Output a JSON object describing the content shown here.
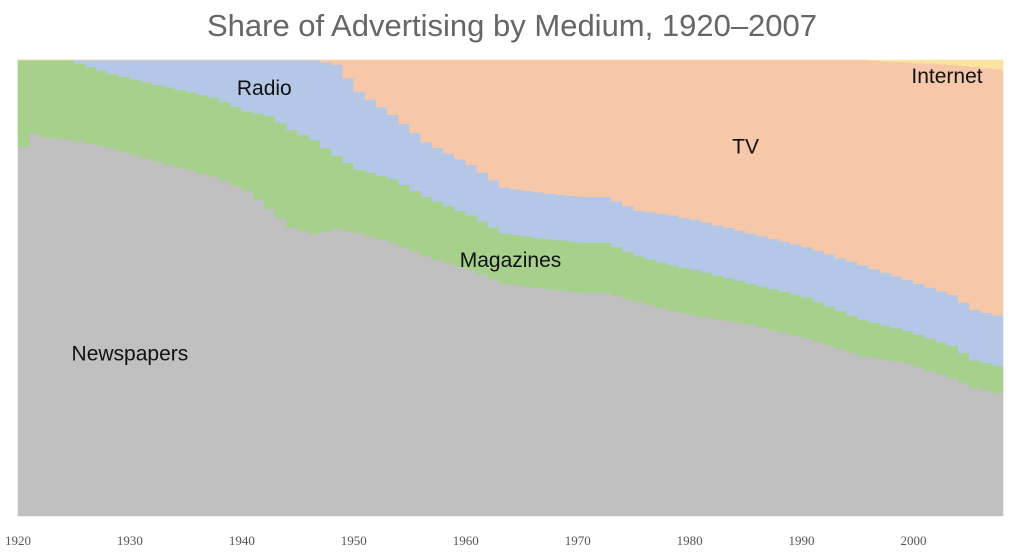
{
  "chart_data": {
    "type": "area",
    "title": "Share of Advertising by Medium, 1920–2007",
    "xlabel": "",
    "ylabel": "",
    "stacking": "percent",
    "xlim": [
      1920,
      2008
    ],
    "ylim": [
      0,
      100
    ],
    "x_ticks": [
      1920,
      1930,
      1940,
      1950,
      1960,
      1970,
      1980,
      1990,
      2000
    ],
    "grid": false,
    "legend": "none",
    "stack_order_bottom_to_top": [
      "Newspapers",
      "Magazines",
      "Radio",
      "TV",
      "Internet"
    ],
    "series": [
      {
        "name": "Newspapers",
        "color": "#c0c0c0",
        "points": [
          [
            1920,
            81
          ],
          [
            1921,
            84
          ],
          [
            1922,
            83
          ],
          [
            1924,
            81
          ],
          [
            1928,
            79
          ],
          [
            1933,
            77
          ],
          [
            1935,
            75
          ],
          [
            1937,
            73
          ],
          [
            1940,
            70
          ],
          [
            1942,
            66
          ],
          [
            1944,
            62
          ],
          [
            1946,
            60
          ],
          [
            1948,
            63
          ],
          [
            1950,
            62
          ],
          [
            1953,
            60
          ],
          [
            1956,
            57
          ],
          [
            1960,
            54
          ],
          [
            1963,
            51
          ],
          [
            1966,
            50
          ],
          [
            1970,
            49
          ],
          [
            1972,
            49
          ],
          [
            1975,
            47
          ],
          [
            1978,
            45
          ],
          [
            1980,
            44
          ],
          [
            1985,
            42
          ],
          [
            1990,
            39
          ],
          [
            1995,
            35
          ],
          [
            1999,
            33
          ],
          [
            2003,
            30
          ],
          [
            2005,
            28
          ],
          [
            2007,
            27
          ]
        ]
      },
      {
        "name": "Magazines",
        "color": "#a6d08c",
        "points": [
          [
            1920,
            19
          ],
          [
            1921,
            16
          ],
          [
            1922,
            17
          ],
          [
            1924,
            17
          ],
          [
            1928,
            16
          ],
          [
            1933,
            17
          ],
          [
            1935,
            17
          ],
          [
            1937,
            17
          ],
          [
            1940,
            17
          ],
          [
            1942,
            20
          ],
          [
            1944,
            21
          ],
          [
            1946,
            20
          ],
          [
            1948,
            16
          ],
          [
            1950,
            14
          ],
          [
            1953,
            14
          ],
          [
            1956,
            13
          ],
          [
            1960,
            12
          ],
          [
            1963,
            11
          ],
          [
            1966,
            11
          ],
          [
            1970,
            11
          ],
          [
            1972,
            11
          ],
          [
            1975,
            10
          ],
          [
            1978,
            10
          ],
          [
            1980,
            10
          ],
          [
            1985,
            9
          ],
          [
            1990,
            9
          ],
          [
            1995,
            8
          ],
          [
            1999,
            7
          ],
          [
            2003,
            7
          ],
          [
            2005,
            6
          ],
          [
            2007,
            6
          ]
        ]
      },
      {
        "name": "Radio",
        "color": "#b4c7e7",
        "points": [
          [
            1920,
            0
          ],
          [
            1921,
            0
          ],
          [
            1922,
            0
          ],
          [
            1924,
            0
          ],
          [
            1928,
            3
          ],
          [
            1933,
            6
          ],
          [
            1935,
            7
          ],
          [
            1937,
            8
          ],
          [
            1940,
            11
          ],
          [
            1942,
            12
          ],
          [
            1944,
            15
          ],
          [
            1946,
            17
          ],
          [
            1948,
            20
          ],
          [
            1950,
            17
          ],
          [
            1953,
            14
          ],
          [
            1956,
            12
          ],
          [
            1960,
            11
          ],
          [
            1963,
            10
          ],
          [
            1966,
            10
          ],
          [
            1970,
            10
          ],
          [
            1972,
            10
          ],
          [
            1975,
            10
          ],
          [
            1978,
            11
          ],
          [
            1980,
            11
          ],
          [
            1985,
            11
          ],
          [
            1990,
            11
          ],
          [
            1995,
            12
          ],
          [
            1999,
            11
          ],
          [
            2003,
            11
          ],
          [
            2005,
            11
          ],
          [
            2007,
            11
          ]
        ]
      },
      {
        "name": "TV",
        "color": "#f6c7a9",
        "points": [
          [
            1920,
            0
          ],
          [
            1921,
            0
          ],
          [
            1922,
            0
          ],
          [
            1924,
            0
          ],
          [
            1928,
            0
          ],
          [
            1933,
            0
          ],
          [
            1935,
            0
          ],
          [
            1937,
            0
          ],
          [
            1940,
            0
          ],
          [
            1942,
            0
          ],
          [
            1944,
            0
          ],
          [
            1946,
            0
          ],
          [
            1948,
            1
          ],
          [
            1950,
            7
          ],
          [
            1953,
            12
          ],
          [
            1956,
            18
          ],
          [
            1960,
            23
          ],
          [
            1963,
            28
          ],
          [
            1966,
            29
          ],
          [
            1970,
            30
          ],
          [
            1972,
            30
          ],
          [
            1975,
            33
          ],
          [
            1978,
            34
          ],
          [
            1980,
            35
          ],
          [
            1985,
            38
          ],
          [
            1990,
            41
          ],
          [
            1995,
            45
          ],
          [
            1999,
            47
          ],
          [
            2003,
            50
          ],
          [
            2005,
            53
          ],
          [
            2007,
            54
          ]
        ]
      },
      {
        "name": "Internet",
        "color": "#fbe3a0",
        "points": [
          [
            1920,
            0
          ],
          [
            1921,
            0
          ],
          [
            1922,
            0
          ],
          [
            1924,
            0
          ],
          [
            1928,
            0
          ],
          [
            1933,
            0
          ],
          [
            1935,
            0
          ],
          [
            1937,
            0
          ],
          [
            1940,
            0
          ],
          [
            1942,
            0
          ],
          [
            1944,
            0
          ],
          [
            1946,
            0
          ],
          [
            1948,
            0
          ],
          [
            1950,
            0
          ],
          [
            1953,
            0
          ],
          [
            1956,
            0
          ],
          [
            1960,
            0
          ],
          [
            1963,
            0
          ],
          [
            1966,
            0
          ],
          [
            1970,
            0
          ],
          [
            1972,
            0
          ],
          [
            1975,
            0
          ],
          [
            1978,
            0
          ],
          [
            1980,
            0
          ],
          [
            1985,
            0
          ],
          [
            1990,
            0
          ],
          [
            1995,
            0
          ],
          [
            1999,
            0.5
          ],
          [
            2003,
            1
          ],
          [
            2005,
            1.5
          ],
          [
            2007,
            2
          ]
        ]
      }
    ]
  }
}
